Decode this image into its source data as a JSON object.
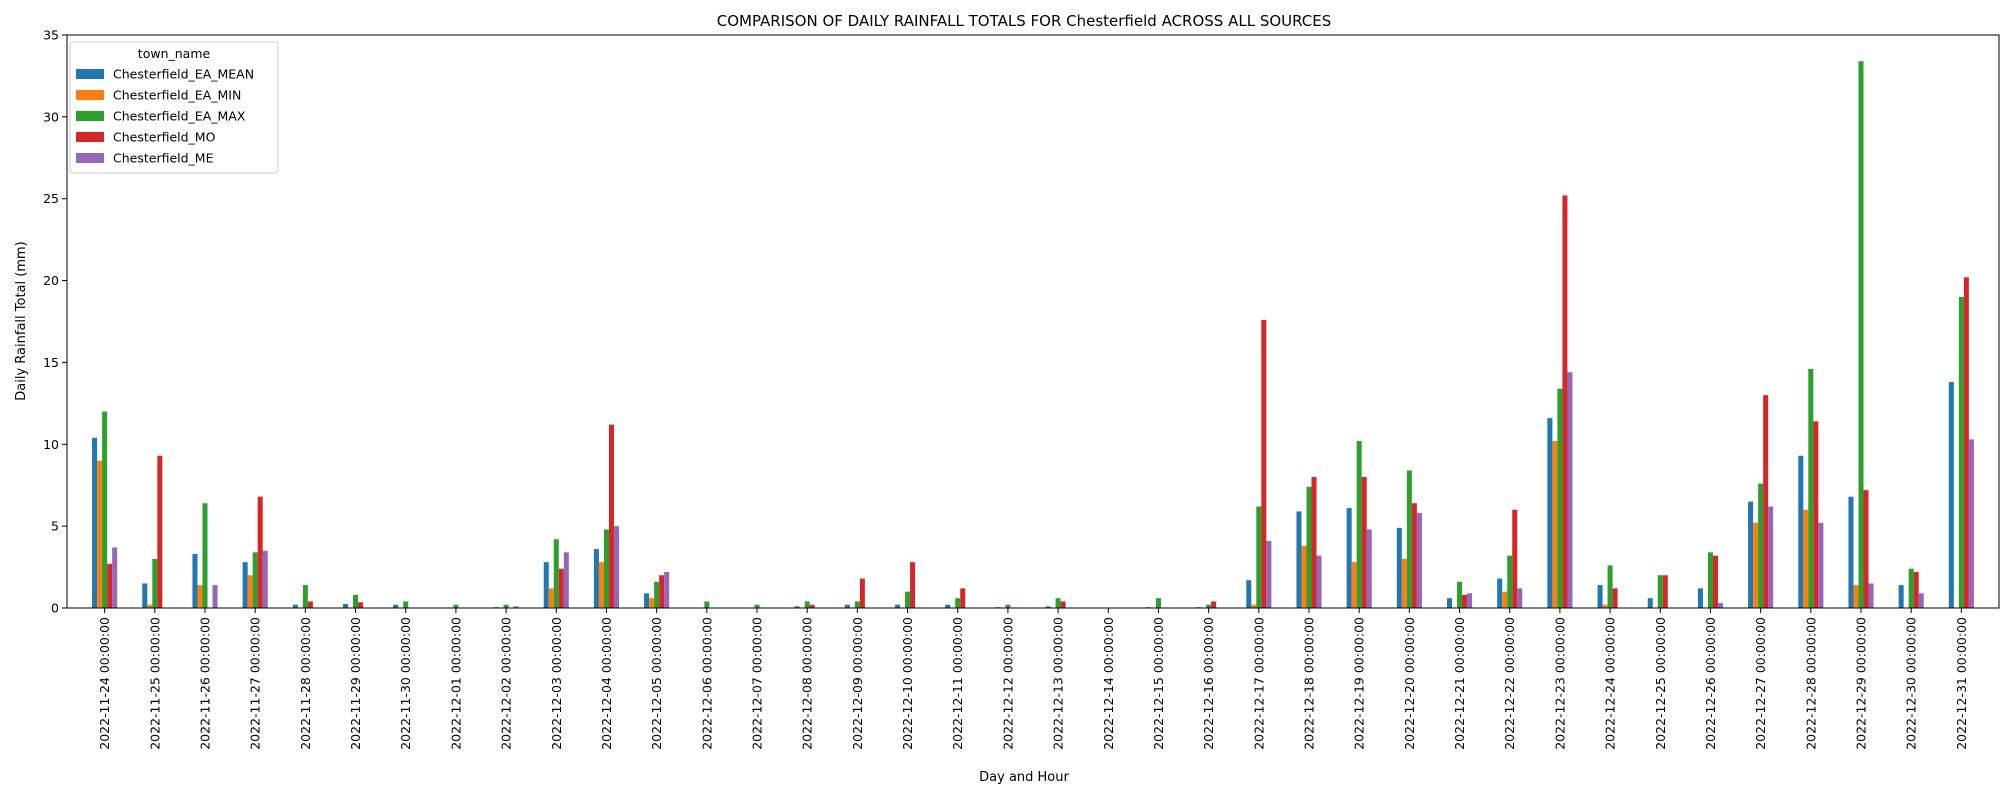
{
  "chart_data": {
    "type": "bar",
    "title": "COMPARISON OF DAILY RAINFALL TOTALS FOR Chesterfield ACROSS ALL SOURCES",
    "xlabel": "Day and Hour",
    "ylabel": "Daily Rainfall Total (mm)",
    "ylim": [
      0,
      35
    ],
    "yticks": [
      0,
      5,
      10,
      15,
      20,
      25,
      30,
      35
    ],
    "grid": false,
    "legend": {
      "title": "town_name",
      "placement": "top-left"
    },
    "categories": [
      "2022-11-24 00:00:00",
      "2022-11-25 00:00:00",
      "2022-11-26 00:00:00",
      "2022-11-27 00:00:00",
      "2022-11-28 00:00:00",
      "2022-11-29 00:00:00",
      "2022-11-30 00:00:00",
      "2022-12-01 00:00:00",
      "2022-12-02 00:00:00",
      "2022-12-03 00:00:00",
      "2022-12-04 00:00:00",
      "2022-12-05 00:00:00",
      "2022-12-06 00:00:00",
      "2022-12-07 00:00:00",
      "2022-12-08 00:00:00",
      "2022-12-09 00:00:00",
      "2022-12-10 00:00:00",
      "2022-12-11 00:00:00",
      "2022-12-12 00:00:00",
      "2022-12-13 00:00:00",
      "2022-12-14 00:00:00",
      "2022-12-15 00:00:00",
      "2022-12-16 00:00:00",
      "2022-12-17 00:00:00",
      "2022-12-18 00:00:00",
      "2022-12-19 00:00:00",
      "2022-12-20 00:00:00",
      "2022-12-21 00:00:00",
      "2022-12-22 00:00:00",
      "2022-12-23 00:00:00",
      "2022-12-24 00:00:00",
      "2022-12-25 00:00:00",
      "2022-12-26 00:00:00",
      "2022-12-27 00:00:00",
      "2022-12-28 00:00:00",
      "2022-12-29 00:00:00",
      "2022-12-30 00:00:00",
      "2022-12-31 00:00:00"
    ],
    "series": [
      {
        "name": "Chesterfield_EA_MEAN",
        "color": "#1f77b4",
        "values": [
          10.4,
          1.5,
          3.3,
          2.8,
          0.2,
          0.25,
          0.2,
          0.0,
          0.05,
          2.8,
          3.6,
          0.9,
          0.0,
          0.0,
          0.1,
          0.2,
          0.2,
          0.2,
          0.05,
          0.1,
          0.0,
          0.05,
          0.05,
          1.7,
          5.9,
          6.1,
          4.9,
          0.6,
          1.8,
          11.6,
          1.4,
          0.6,
          1.2,
          6.5,
          9.3,
          6.8,
          1.4,
          13.8
        ]
      },
      {
        "name": "Chesterfield_EA_MIN",
        "color": "#ff7f0e",
        "values": [
          9.0,
          0.2,
          1.4,
          2.0,
          0.0,
          0.0,
          0.0,
          0.0,
          0.0,
          1.2,
          2.8,
          0.6,
          0.0,
          0.0,
          0.0,
          0.0,
          0.0,
          0.0,
          0.0,
          0.0,
          0.0,
          0.0,
          0.0,
          0.2,
          3.8,
          2.8,
          3.0,
          0.0,
          1.0,
          10.2,
          0.2,
          0.0,
          0.0,
          5.2,
          6.0,
          1.4,
          0.0,
          0.0
        ]
      },
      {
        "name": "Chesterfield_EA_MAX",
        "color": "#2ca02c",
        "values": [
          12.0,
          3.0,
          6.4,
          3.4,
          1.4,
          0.8,
          0.4,
          0.2,
          0.2,
          4.2,
          4.8,
          1.6,
          0.4,
          0.2,
          0.4,
          0.4,
          1.0,
          0.6,
          0.2,
          0.6,
          0.0,
          0.6,
          0.2,
          6.2,
          7.4,
          10.2,
          8.4,
          1.6,
          3.2,
          13.4,
          2.6,
          2.0,
          3.4,
          7.6,
          14.6,
          33.4,
          2.4,
          19.0
        ]
      },
      {
        "name": "Chesterfield_MO",
        "color": "#d62728",
        "values": [
          2.7,
          9.3,
          0.0,
          6.8,
          0.4,
          0.35,
          0.0,
          0.0,
          0.0,
          2.4,
          11.2,
          2.0,
          0.0,
          0.0,
          0.2,
          1.8,
          2.8,
          1.2,
          0.0,
          0.4,
          0.0,
          0.0,
          0.4,
          17.6,
          8.0,
          8.0,
          6.4,
          0.8,
          6.0,
          25.2,
          1.2,
          2.0,
          3.2,
          13.0,
          11.4,
          7.2,
          2.2,
          20.2
        ]
      },
      {
        "name": "Chesterfield_ME",
        "color": "#9467bd",
        "values": [
          3.7,
          0.0,
          1.4,
          3.5,
          0.0,
          0.0,
          0.0,
          0.0,
          0.1,
          3.4,
          5.0,
          2.2,
          0.0,
          0.0,
          0.0,
          0.0,
          0.0,
          0.0,
          0.0,
          0.0,
          0.0,
          0.0,
          0.0,
          4.1,
          3.2,
          4.8,
          5.8,
          0.9,
          1.2,
          14.4,
          0.0,
          0.0,
          0.3,
          6.2,
          5.2,
          1.5,
          0.9,
          10.3
        ]
      }
    ]
  }
}
